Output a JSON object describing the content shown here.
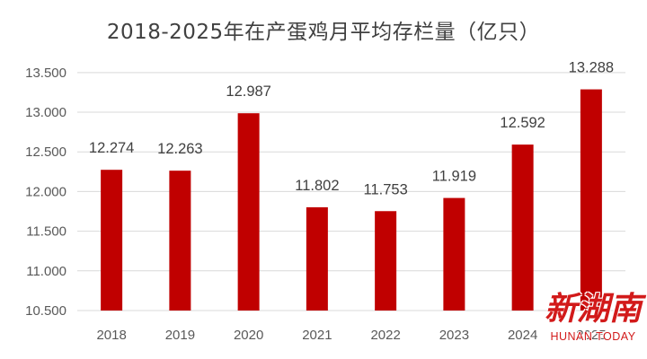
{
  "chart_data": {
    "type": "bar",
    "title": "2018-2025年在产蛋鸡月平均存栏量（亿只）",
    "xlabel": "",
    "ylabel": "",
    "categories": [
      "2018",
      "2019",
      "2020",
      "2021",
      "2022",
      "2023",
      "2024",
      "2025"
    ],
    "values": [
      12.274,
      12.263,
      12.987,
      11.802,
      11.753,
      11.919,
      12.592,
      13.288
    ],
    "value_labels": [
      "12.274",
      "12.263",
      "12.987",
      "11.802",
      "11.753",
      "11.919",
      "12.592",
      "13.288"
    ],
    "ylim": [
      10.5,
      13.6
    ],
    "yticks": [
      10.5,
      11.0,
      11.5,
      12.0,
      12.5,
      13.0,
      13.5
    ],
    "ytick_labels": [
      "10.500",
      "11.000",
      "11.500",
      "12.000",
      "12.500",
      "13.000",
      "13.500"
    ],
    "grid": true,
    "legend": "none",
    "bar_color": "#c00000"
  },
  "watermark": {
    "brand_cn": "新湖南",
    "brand_en": "HUNAN TODAY",
    "color": "#d21a1a"
  }
}
